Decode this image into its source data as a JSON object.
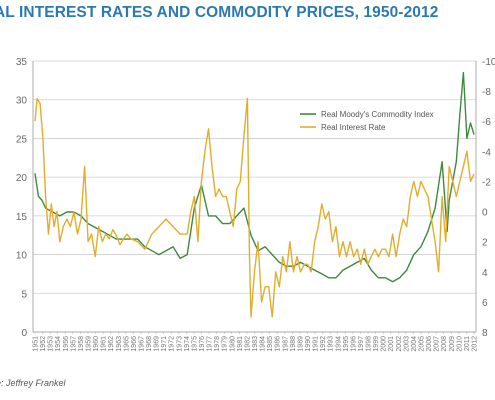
{
  "chart_data": {
    "type": "line",
    "title": "AL INTEREST RATES AND COMMODITY PRICES, 1950-2012",
    "source": "e: Jeffrey Frankel",
    "left_axis": {
      "min": 0,
      "max": 35,
      "ticks": [
        "0",
        "5",
        "10",
        "15",
        "20",
        "25",
        "30",
        "35"
      ]
    },
    "right_axis": {
      "min": -10,
      "max": 8,
      "reversed": true,
      "ticks": [
        "-10",
        "-8",
        "-6",
        "-4",
        "-2",
        "0",
        "2",
        "4",
        "6",
        "8"
      ]
    },
    "x_axis": {
      "min": 1950.5,
      "max": 2012.5,
      "ticks": [
        "1951",
        "1952",
        "1953",
        "1954",
        "1956",
        "1957",
        "1958",
        "1959",
        "1960",
        "1961",
        "1962",
        "1963",
        "1965",
        "1966",
        "1967",
        "1968",
        "1969",
        "1971",
        "1972",
        "1973",
        "1974",
        "1975",
        "1976",
        "1977",
        "1978",
        "1979",
        "1980",
        "1981",
        "1982",
        "1983",
        "1984",
        "1985",
        "1986",
        "1987",
        "1988",
        "1989",
        "1990",
        "1991",
        "1992",
        "1993",
        "1994",
        "1995",
        "1996",
        "1997",
        "1998",
        "1999",
        "2000",
        "2001",
        "2002",
        "2003",
        "2004",
        "2005",
        "2006",
        "2007",
        "2008",
        "2009",
        "2010",
        "2011",
        "2012"
      ]
    },
    "grid": true,
    "legend_position": "top-right",
    "series": [
      {
        "name": "Real Moody's Commodity Index",
        "axis": "left",
        "color": "#3d8a3d",
        "points": [
          [
            1950.5,
            20.5
          ],
          [
            1951,
            17.5
          ],
          [
            1951.5,
            17
          ],
          [
            1952,
            16
          ],
          [
            1953,
            15.5
          ],
          [
            1954,
            15
          ],
          [
            1955,
            15.5
          ],
          [
            1956,
            15.5
          ],
          [
            1957,
            15
          ],
          [
            1958,
            14
          ],
          [
            1959,
            13.5
          ],
          [
            1960,
            13
          ],
          [
            1961,
            12.5
          ],
          [
            1962,
            12
          ],
          [
            1963,
            12
          ],
          [
            1964,
            12
          ],
          [
            1965,
            12
          ],
          [
            1966,
            11
          ],
          [
            1967,
            10.5
          ],
          [
            1968,
            10
          ],
          [
            1969,
            10.5
          ],
          [
            1970,
            11
          ],
          [
            1971,
            9.5
          ],
          [
            1972,
            10
          ],
          [
            1973,
            16
          ],
          [
            1974,
            19
          ],
          [
            1975,
            15
          ],
          [
            1976,
            15
          ],
          [
            1977,
            14
          ],
          [
            1978,
            14
          ],
          [
            1979,
            15
          ],
          [
            1980,
            16
          ],
          [
            1981,
            12.5
          ],
          [
            1982,
            10.5
          ],
          [
            1983,
            11
          ],
          [
            1984,
            10
          ],
          [
            1985,
            9
          ],
          [
            1986,
            8.5
          ],
          [
            1987,
            8.5
          ],
          [
            1988,
            9
          ],
          [
            1989,
            8.5
          ],
          [
            1990,
            8
          ],
          [
            1991,
            7.5
          ],
          [
            1992,
            7
          ],
          [
            1993,
            7
          ],
          [
            1994,
            8
          ],
          [
            1995,
            8.5
          ],
          [
            1996,
            9
          ],
          [
            1997,
            9.5
          ],
          [
            1998,
            8
          ],
          [
            1999,
            7
          ],
          [
            2000,
            7
          ],
          [
            2001,
            6.5
          ],
          [
            2002,
            7
          ],
          [
            2003,
            8
          ],
          [
            2004,
            10
          ],
          [
            2005,
            11
          ],
          [
            2006,
            13
          ],
          [
            2007,
            16
          ],
          [
            2008,
            22
          ],
          [
            2008.7,
            13
          ],
          [
            2009,
            17
          ],
          [
            2010,
            22
          ],
          [
            2010.5,
            28
          ],
          [
            2011,
            33.5
          ],
          [
            2011.5,
            25
          ],
          [
            2012,
            27
          ],
          [
            2012.5,
            25.5
          ]
        ]
      },
      {
        "name": "Real Interest Rate",
        "axis": "right",
        "color": "#e2ad2c",
        "points": [
          [
            1950.5,
            -6
          ],
          [
            1950.8,
            -7.5
          ],
          [
            1951.2,
            -7.2
          ],
          [
            1951.6,
            -5
          ],
          [
            1952,
            -1
          ],
          [
            1952.4,
            1.5
          ],
          [
            1952.8,
            -0.5
          ],
          [
            1953.2,
            1
          ],
          [
            1953.6,
            0
          ],
          [
            1954,
            2
          ],
          [
            1954.5,
            1
          ],
          [
            1955,
            0.5
          ],
          [
            1955.5,
            1
          ],
          [
            1956,
            0
          ],
          [
            1956.5,
            1.5
          ],
          [
            1957,
            0.5
          ],
          [
            1957.5,
            -3
          ],
          [
            1958,
            2
          ],
          [
            1958.5,
            1.5
          ],
          [
            1959,
            3
          ],
          [
            1959.5,
            1
          ],
          [
            1960,
            2
          ],
          [
            1960.5,
            1.5
          ],
          [
            1961,
            1.8
          ],
          [
            1961.5,
            1.2
          ],
          [
            1962,
            1.6
          ],
          [
            1962.5,
            2.2
          ],
          [
            1963,
            1.8
          ],
          [
            1963.5,
            1.5
          ],
          [
            1964,
            1.8
          ],
          [
            1965,
            2
          ],
          [
            1966,
            2.5
          ],
          [
            1967,
            1.5
          ],
          [
            1968,
            1
          ],
          [
            1969,
            0.5
          ],
          [
            1970,
            1
          ],
          [
            1971,
            1.5
          ],
          [
            1972,
            1.5
          ],
          [
            1972.5,
            0
          ],
          [
            1973,
            -1
          ],
          [
            1973.5,
            2
          ],
          [
            1974,
            -2
          ],
          [
            1974.5,
            -4
          ],
          [
            1975,
            -5.5
          ],
          [
            1975.5,
            -3
          ],
          [
            1976,
            -1
          ],
          [
            1976.5,
            -1.5
          ],
          [
            1977,
            -1
          ],
          [
            1977.5,
            -1
          ],
          [
            1978,
            0
          ],
          [
            1978.5,
            1
          ],
          [
            1979,
            -1.5
          ],
          [
            1979.5,
            -2
          ],
          [
            1980,
            -5
          ],
          [
            1980.5,
            -7.5
          ],
          [
            1980.8,
            3
          ],
          [
            1981,
            7
          ],
          [
            1981.5,
            4
          ],
          [
            1982,
            2
          ],
          [
            1982.5,
            6
          ],
          [
            1983,
            5
          ],
          [
            1983.5,
            5
          ],
          [
            1984,
            7
          ],
          [
            1984.5,
            4
          ],
          [
            1985,
            5
          ],
          [
            1985.5,
            3
          ],
          [
            1986,
            4
          ],
          [
            1986.5,
            2
          ],
          [
            1987,
            4
          ],
          [
            1987.5,
            3
          ],
          [
            1988,
            4
          ],
          [
            1988.5,
            3.5
          ],
          [
            1989,
            3.5
          ],
          [
            1989.5,
            4
          ],
          [
            1990,
            2
          ],
          [
            1990.5,
            1
          ],
          [
            1991,
            -0.5
          ],
          [
            1991.5,
            0.5
          ],
          [
            1992,
            0
          ],
          [
            1992.5,
            2
          ],
          [
            1993,
            1
          ],
          [
            1993.5,
            3
          ],
          [
            1994,
            2
          ],
          [
            1994.5,
            3
          ],
          [
            1995,
            2
          ],
          [
            1995.5,
            3
          ],
          [
            1996,
            2.5
          ],
          [
            1996.5,
            3.5
          ],
          [
            1997,
            2.5
          ],
          [
            1997.5,
            3.5
          ],
          [
            1998,
            3
          ],
          [
            1998.5,
            2.5
          ],
          [
            1999,
            3
          ],
          [
            1999.5,
            2.5
          ],
          [
            2000,
            2.5
          ],
          [
            2000.5,
            3
          ],
          [
            2001,
            1.5
          ],
          [
            2001.5,
            3
          ],
          [
            2002,
            1.5
          ],
          [
            2002.5,
            0.5
          ],
          [
            2003,
            1
          ],
          [
            2003.5,
            -1
          ],
          [
            2004,
            -2
          ],
          [
            2004.5,
            -1
          ],
          [
            2005,
            -2
          ],
          [
            2005.5,
            -1.5
          ],
          [
            2006,
            -1
          ],
          [
            2006.5,
            0.5
          ],
          [
            2007,
            2
          ],
          [
            2007.5,
            4
          ],
          [
            2008,
            -1
          ],
          [
            2008.5,
            2
          ],
          [
            2009,
            -3
          ],
          [
            2009.5,
            -2
          ],
          [
            2010,
            -1
          ],
          [
            2010.5,
            -2
          ],
          [
            2011,
            -3
          ],
          [
            2011.5,
            -4
          ],
          [
            2012,
            -2
          ],
          [
            2012.5,
            -2.5
          ]
        ]
      }
    ]
  }
}
